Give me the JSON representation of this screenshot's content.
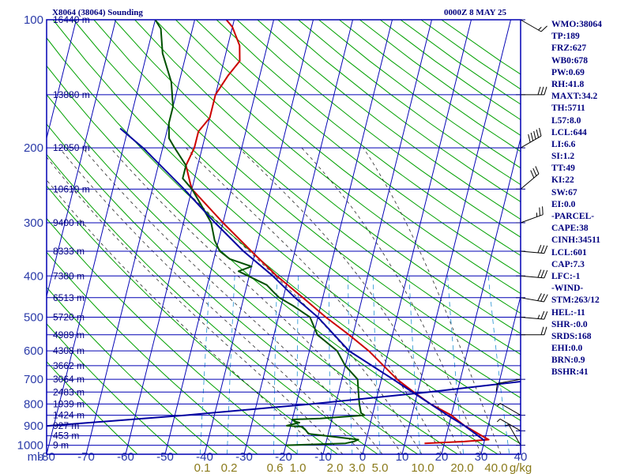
{
  "header": {
    "station": "X8064 (38064) Sounding",
    "time": "0000Z  8 MAY 25"
  },
  "colors": {
    "frame": "#0000b4",
    "isotherm": "#0000b4",
    "dry_adiabat": "#00a000",
    "moist_adiabat": "#2a2a2a",
    "mixing_ratio": "#1e8fd0",
    "temperature": "#cc0000",
    "dewpoint": "#005000",
    "parcel": "#0000a0",
    "text": "#00007f"
  },
  "side_panel": {
    "lines": [
      "WMO:38064",
      "TP:189",
      "FRZ:627",
      "WB0:678",
      "PW:0.69",
      "RH:41.8",
      "MAXT:34.2",
      "TH:5711",
      "L57:8.0",
      "LCL:644",
      "LI:6.6",
      "SI:1.2",
      "TT:49",
      "KI:22",
      "SW:67",
      "EI:0.0",
      "-PARCEL-",
      "CAPE:38",
      "CINH:34511",
      "LCL:601",
      "CAP:7.3",
      "LFC:-1",
      "-WIND-",
      "STM:263/12",
      "HEL:-11",
      "SHR-:0.0",
      "SRDS:168",
      "EHI:0.0",
      "BRN:0.9",
      "BSHR:41"
    ]
  },
  "chart_data": {
    "type": "line",
    "diagram": "skew-T log-P",
    "x_axis": {
      "unit_label": "mb",
      "ticks": [
        "-80",
        "-70",
        "-60",
        "-50",
        "-40",
        "-30",
        "-20",
        "-10",
        "0",
        "10",
        "20",
        "30",
        "40"
      ],
      "range_c": [
        -80,
        40
      ]
    },
    "y_axis": {
      "ticks_mb": [
        "100",
        "200",
        "300",
        "400",
        "500",
        "600",
        "700",
        "800",
        "900",
        "1000"
      ],
      "range_mb": [
        100,
        1050
      ],
      "scale": "log"
    },
    "height_labels": [
      {
        "p": 100,
        "label": "16440 m"
      },
      {
        "p": 150,
        "label": "13880 m"
      },
      {
        "p": 200,
        "label": "12050 m"
      },
      {
        "p": 250,
        "label": "10610 m"
      },
      {
        "p": 300,
        "label": "9400 m"
      },
      {
        "p": 350,
        "label": "8333 m"
      },
      {
        "p": 400,
        "label": "7380 m"
      },
      {
        "p": 450,
        "label": "6513 m"
      },
      {
        "p": 500,
        "label": "5720 m"
      },
      {
        "p": 550,
        "label": "4989 m"
      },
      {
        "p": 600,
        "label": "4308 m"
      },
      {
        "p": 650,
        "label": "3662 m"
      },
      {
        "p": 700,
        "label": "3064 m"
      },
      {
        "p": 750,
        "label": "2483 m"
      },
      {
        "p": 800,
        "label": "1939 m"
      },
      {
        "p": 850,
        "label": "1424 m"
      },
      {
        "p": 900,
        "label": "927 m"
      },
      {
        "p": 950,
        "label": "453 m"
      },
      {
        "p": 1000,
        "label": "9 m"
      }
    ],
    "mixing_ratio_labels": [
      "0.1",
      "0.2",
      "0.6",
      "1.0",
      "2.0",
      "3.0",
      "5.0",
      "10.0",
      "20.0",
      "40.0",
      "g/kg"
    ],
    "mixing_ratio_values": [
      0.1,
      0.2,
      0.6,
      1.0,
      2.0,
      3.0,
      5.0,
      10.0,
      20.0,
      40.0
    ],
    "series": [
      {
        "key": "temperature",
        "points": [
          [
            100,
            -62
          ],
          [
            104,
            -60
          ],
          [
            115,
            -57
          ],
          [
            125,
            -56
          ],
          [
            135,
            -58
          ],
          [
            150,
            -60
          ],
          [
            170,
            -60
          ],
          [
            183,
            -62
          ],
          [
            200,
            -62
          ],
          [
            220,
            -63
          ],
          [
            240,
            -61
          ],
          [
            250,
            -60
          ],
          [
            300,
            -50
          ],
          [
            350,
            -41
          ],
          [
            400,
            -33
          ],
          [
            450,
            -25
          ],
          [
            500,
            -18
          ],
          [
            550,
            -11
          ],
          [
            600,
            -5
          ],
          [
            700,
            4
          ],
          [
            750,
            9
          ],
          [
            800,
            14
          ],
          [
            850,
            20
          ],
          [
            900,
            24
          ],
          [
            950,
            29
          ],
          [
            970,
            31
          ],
          [
            980,
            25
          ],
          [
            990,
            15
          ]
        ]
      },
      {
        "key": "dewpoint",
        "points": [
          [
            100,
            -80
          ],
          [
            105,
            -78
          ],
          [
            120,
            -76
          ],
          [
            140,
            -72
          ],
          [
            160,
            -70
          ],
          [
            175,
            -70
          ],
          [
            190,
            -69
          ],
          [
            200,
            -67
          ],
          [
            220,
            -63
          ],
          [
            236,
            -63
          ],
          [
            250,
            -60
          ],
          [
            270,
            -57
          ],
          [
            300,
            -53
          ],
          [
            330,
            -51
          ],
          [
            350,
            -49
          ],
          [
            365,
            -46
          ],
          [
            380,
            -40
          ],
          [
            390,
            -43
          ],
          [
            420,
            -35
          ],
          [
            435,
            -33
          ],
          [
            450,
            -31
          ],
          [
            470,
            -27
          ],
          [
            500,
            -22
          ],
          [
            550,
            -19
          ],
          [
            600,
            -13
          ],
          [
            650,
            -10
          ],
          [
            700,
            -6
          ],
          [
            750,
            -5
          ],
          [
            800,
            -4
          ],
          [
            840,
            -3
          ],
          [
            850,
            -2
          ],
          [
            865,
            -13
          ],
          [
            870,
            -20
          ],
          [
            880,
            -19
          ],
          [
            885,
            -18
          ],
          [
            900,
            -21
          ],
          [
            905,
            -17
          ],
          [
            920,
            -16
          ],
          [
            940,
            -15
          ],
          [
            970,
            -2
          ],
          [
            980,
            -3
          ],
          [
            990,
            -5
          ],
          [
            1000,
            -20
          ]
        ]
      },
      {
        "key": "parcel",
        "points": [
          [
            1000,
            -156.8
          ],
          [
            950,
            -117.3
          ],
          [
            900,
            -81
          ],
          [
            850,
            -47.3
          ],
          [
            800,
            -16.1
          ],
          [
            750,
            12.9
          ],
          [
            700,
            40.1
          ],
          [
            650,
            65.6
          ],
          [
            600,
            89.6
          ],
          [
            550,
            112.2
          ],
          [
            500,
            133.6
          ],
          [
            450,
            153.8
          ],
          [
            400,
            172.9
          ],
          [
            350,
            191
          ],
          [
            300,
            208.1
          ],
          [
            250,
            224.2
          ],
          [
            200,
            239.3
          ]
        ]
      },
      {
        "key": "parcel",
        "points": [
          [
            975,
            30
          ],
          [
            900,
            24
          ],
          [
            850,
            19
          ],
          [
            800,
            14
          ],
          [
            700,
            3
          ],
          [
            600,
            -10
          ],
          [
            500,
            -20
          ],
          [
            450,
            -27
          ],
          [
            400,
            -34
          ],
          [
            350,
            -43
          ],
          [
            300,
            -52
          ],
          [
            250,
            -62
          ],
          [
            200,
            -75
          ],
          [
            180,
            -82
          ]
        ]
      }
    ],
    "wind_barbs": [
      {
        "p": 1000,
        "dir": 150,
        "spd": 5
      },
      {
        "p": 925,
        "dir": 120,
        "spd": 5
      },
      {
        "p": 850,
        "dir": 120,
        "spd": 5
      },
      {
        "p": 700,
        "dir": 80,
        "spd": 10
      },
      {
        "p": 550,
        "dir": 270,
        "spd": 20
      },
      {
        "p": 500,
        "dir": 275,
        "spd": 25
      },
      {
        "p": 450,
        "dir": 280,
        "spd": 30
      },
      {
        "p": 400,
        "dir": 275,
        "spd": 30
      },
      {
        "p": 350,
        "dir": 275,
        "spd": 30
      },
      {
        "p": 300,
        "dir": 250,
        "spd": 25
      },
      {
        "p": 250,
        "dir": 230,
        "spd": 30
      },
      {
        "p": 200,
        "dir": 240,
        "spd": 50
      },
      {
        "p": 150,
        "dir": 270,
        "spd": 30
      },
      {
        "p": 100,
        "dir": 300,
        "spd": 15
      }
    ]
  }
}
